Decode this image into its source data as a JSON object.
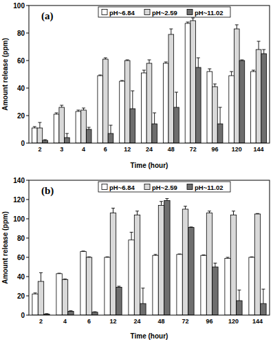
{
  "chart_data": [
    {
      "type": "bar",
      "annotation": "(a)",
      "x_label": "Time (hour)",
      "y_label": "Amount release (ppm)",
      "categories": [
        "2",
        "3",
        "4",
        "6",
        "12",
        "24",
        "48",
        "72",
        "96",
        "120",
        "144"
      ],
      "series": [
        {
          "name": "pH~6.84",
          "color": "#ffffff",
          "values": [
            11,
            21,
            23,
            49,
            45,
            51,
            58,
            87,
            52,
            49,
            52
          ],
          "errors": [
            1,
            1,
            1,
            0.5,
            0.5,
            2,
            1,
            1,
            2,
            3,
            1
          ]
        },
        {
          "name": "pH~2.59",
          "color": "#d9d9d9",
          "values": [
            11,
            26,
            24,
            61,
            60,
            58,
            79,
            89,
            41,
            83,
            68
          ],
          "errors": [
            4,
            1.5,
            1.5,
            1,
            0.5,
            2.5,
            4,
            2,
            2,
            3,
            6
          ]
        },
        {
          "name": "pH~11.02",
          "color": "#6e6e6e",
          "values": [
            2,
            4,
            10,
            7,
            25,
            14,
            26,
            55,
            14,
            60,
            65
          ],
          "errors": [
            0.5,
            3,
            1.5,
            6,
            13,
            8,
            11,
            7,
            12,
            0.5,
            3
          ]
        }
      ],
      "ylim": [
        0,
        100
      ],
      "yticks": [
        0,
        20,
        40,
        60,
        80,
        100
      ],
      "grid": false,
      "legend": "top"
    },
    {
      "type": "bar",
      "annotation": "(b)",
      "x_label": "Time (hour)",
      "y_label": "Amount release (ppm)",
      "categories": [
        "2",
        "4",
        "6",
        "12",
        "24",
        "48",
        "72",
        "96",
        "120",
        "144"
      ],
      "series": [
        {
          "name": "pH~6.84",
          "color": "#ffffff",
          "values": [
            22,
            43,
            66,
            60,
            78,
            62,
            63,
            62,
            59,
            60
          ],
          "errors": [
            1,
            0.5,
            0.5,
            0.5,
            8,
            1,
            0.5,
            0.5,
            1,
            0.5
          ]
        },
        {
          "name": "pH~2.59",
          "color": "#d9d9d9",
          "values": [
            35,
            37,
            60,
            106,
            104,
            114,
            110,
            106,
            104,
            105
          ],
          "errors": [
            9,
            0.5,
            0.5,
            5,
            4,
            4,
            3,
            2,
            4,
            0.5
          ]
        },
        {
          "name": "pH~11.02",
          "color": "#6e6e6e",
          "values": [
            1,
            4,
            3,
            29,
            12,
            119,
            91,
            50,
            15,
            12
          ],
          "errors": [
            0.5,
            0.5,
            0.5,
            1,
            16,
            2,
            0.5,
            4,
            11,
            15
          ]
        }
      ],
      "ylim": [
        0,
        140
      ],
      "yticks": [
        0,
        20,
        40,
        60,
        80,
        100,
        120,
        140
      ],
      "grid": false,
      "legend": "top"
    }
  ]
}
